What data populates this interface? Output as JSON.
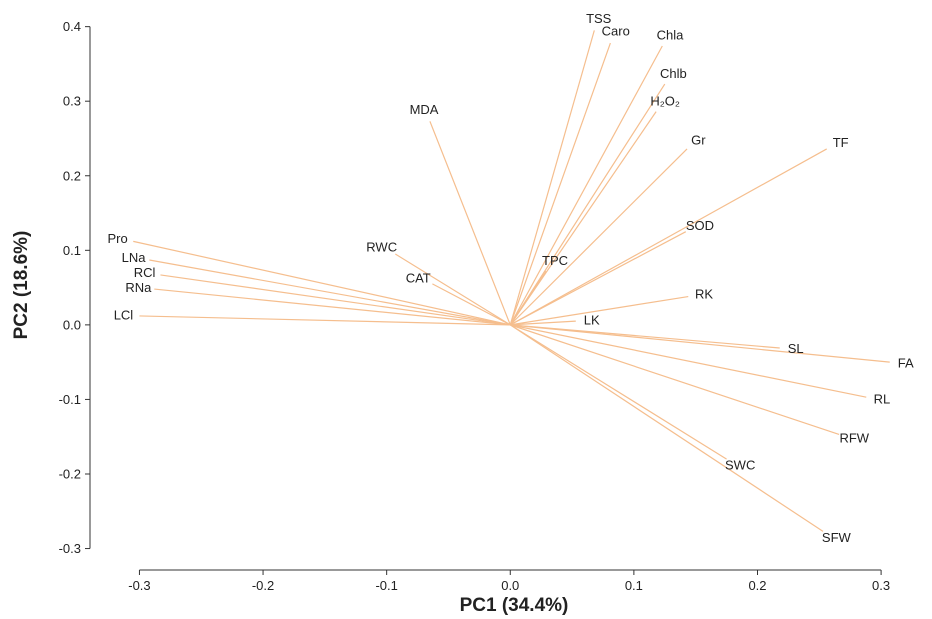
{
  "chart_data": {
    "type": "biplot",
    "xlabel": "PC1 (34.4%)",
    "ylabel": "PC2 (18.6%)",
    "xlim": [
      -0.34,
      0.325
    ],
    "ylim": [
      -0.31,
      0.425
    ],
    "xticks": [
      -0.3,
      -0.2,
      -0.1,
      0.0,
      0.1,
      0.2,
      0.3
    ],
    "yticks": [
      -0.3,
      -0.2,
      -0.1,
      0.0,
      0.1,
      0.2,
      0.3,
      0.4
    ],
    "xtick_labels": [
      "-0.3",
      "-0.2",
      "-0.1",
      "0.0",
      "0.1",
      "0.2",
      "0.3"
    ],
    "ytick_labels": [
      "-0.3",
      "-0.2",
      "-0.1",
      "0.0",
      "0.1",
      "0.2",
      "0.3",
      "0.4"
    ],
    "line_color": "#f5be8e",
    "grid": false,
    "loadings": [
      {
        "name": "TSS",
        "x": 0.068,
        "y": 0.395
      },
      {
        "name": "Caro",
        "x": 0.081,
        "y": 0.378
      },
      {
        "name": "Chla",
        "x": 0.123,
        "y": 0.374
      },
      {
        "name": "Chlb",
        "x": 0.125,
        "y": 0.323
      },
      {
        "name": "H₂O₂",
        "x": 0.118,
        "y": 0.286
      },
      {
        "name": "Gr",
        "x": 0.143,
        "y": 0.236
      },
      {
        "name": "TF",
        "x": 0.256,
        "y": 0.236
      },
      {
        "name": "MDA",
        "x": -0.065,
        "y": 0.273
      },
      {
        "name": "SOD",
        "x": 0.142,
        "y": 0.125
      },
      {
        "name": "TPC",
        "x": 0.029,
        "y": 0.072
      },
      {
        "name": "RWC",
        "x": -0.093,
        "y": 0.095
      },
      {
        "name": "CAT",
        "x": -0.063,
        "y": 0.055
      },
      {
        "name": "RK",
        "x": 0.144,
        "y": 0.038
      },
      {
        "name": "LK",
        "x": 0.053,
        "y": 0.005
      },
      {
        "name": "Pro",
        "x": -0.305,
        "y": 0.112
      },
      {
        "name": "LNa",
        "x": -0.292,
        "y": 0.087
      },
      {
        "name": "RCl",
        "x": -0.283,
        "y": 0.067
      },
      {
        "name": "RNa",
        "x": -0.288,
        "y": 0.048
      },
      {
        "name": "LCl",
        "x": -0.3,
        "y": 0.012
      },
      {
        "name": "SL",
        "x": 0.218,
        "y": -0.031
      },
      {
        "name": "FA",
        "x": 0.307,
        "y": -0.05
      },
      {
        "name": "RL",
        "x": 0.288,
        "y": -0.097
      },
      {
        "name": "RFW",
        "x": 0.266,
        "y": -0.147
      },
      {
        "name": "SWC",
        "x": 0.175,
        "y": -0.18
      },
      {
        "name": "SFW",
        "x": 0.253,
        "y": -0.277
      }
    ]
  }
}
